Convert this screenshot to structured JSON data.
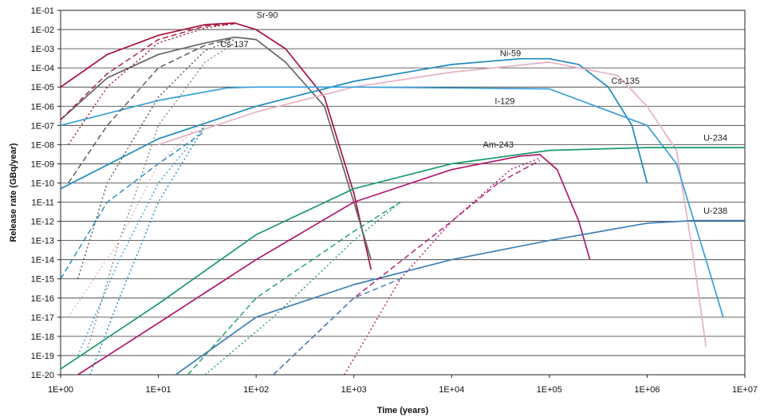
{
  "chart_data": {
    "type": "line",
    "title": "",
    "xlabel": "Time (years)",
    "ylabel": "Release rate (GBq/year)",
    "x_scale": "log",
    "y_scale": "log",
    "xlim": [
      1,
      10000000
    ],
    "ylim": [
      1e-20,
      0.1
    ],
    "x_tick_labels": [
      "1E+00",
      "1E+01",
      "1E+02",
      "1E+03",
      "1E+04",
      "1E+05",
      "1E+06",
      "1E+07"
    ],
    "y_tick_labels": [
      "1E-01",
      "1E-02",
      "1E-03",
      "1E-04",
      "1E-05",
      "1E-06",
      "1E-07",
      "1E-08",
      "1E-09",
      "1E-10",
      "1E-11",
      "1E-12",
      "1E-13",
      "1E-14",
      "1E-15",
      "1E-16",
      "1E-17",
      "1E-18",
      "1E-19",
      "1E-20"
    ],
    "grid": "horizontal",
    "legend": "none (inline labels)",
    "series": [
      {
        "name": "Sr-90",
        "color": "#a8123a",
        "style": "solid",
        "x": [
          1,
          3,
          10,
          30,
          60,
          100,
          200,
          500,
          1000,
          1500
        ],
        "y": [
          1e-05,
          0.0005,
          0.005,
          0.018,
          0.022,
          0.01,
          0.001,
          3e-06,
          3e-11,
          3e-15
        ]
      },
      {
        "name": "Cs-137",
        "color": "#666666",
        "style": "solid",
        "x": [
          1,
          3,
          10,
          30,
          60,
          100,
          200,
          500,
          1000,
          1500
        ],
        "y": [
          2e-07,
          3e-05,
          0.0005,
          0.002,
          0.004,
          0.003,
          0.0002,
          1e-06,
          1e-11,
          1e-14
        ]
      },
      {
        "name": "Ni-59",
        "color": "#1f8ac0",
        "style": "solid",
        "x": [
          1,
          10,
          100,
          1000,
          10000,
          50000,
          100000,
          200000,
          400000,
          700000,
          1000000
        ],
        "y": [
          5e-11,
          2e-08,
          1e-06,
          2e-05,
          0.00015,
          0.0003,
          0.0003,
          0.00015,
          1e-05,
          1e-07,
          1e-10
        ]
      },
      {
        "name": "Cs-135",
        "color": "#e8b0c0",
        "style": "solid",
        "x": [
          10,
          100,
          1000,
          10000,
          100000,
          500000,
          1000000,
          2000000,
          3000000,
          4000000
        ],
        "y": [
          1e-08,
          5e-07,
          1e-05,
          6e-05,
          0.0002,
          4e-05,
          1e-06,
          5e-09,
          1e-14,
          3e-19
        ]
      },
      {
        "name": "I-129",
        "color": "#3aa0d8",
        "style": "solid",
        "x": [
          1,
          10,
          50,
          100,
          1000,
          10000,
          100000,
          1000000,
          2000000,
          4000000,
          6000000
        ],
        "y": [
          1e-07,
          2e-06,
          9e-06,
          1e-05,
          1e-05,
          9e-06,
          8e-06,
          1e-07,
          1e-09,
          1e-14,
          1e-17
        ]
      },
      {
        "name": "Am-243",
        "color": "#b0186e",
        "style": "solid",
        "x": [
          1.5,
          10,
          100,
          1000,
          10000,
          50000,
          80000,
          120000,
          200000,
          260000
        ],
        "y": [
          1e-20,
          5e-18,
          1e-14,
          1e-11,
          5e-10,
          2.5e-09,
          3e-09,
          5e-10,
          1e-12,
          1e-14
        ]
      },
      {
        "name": "U-234",
        "color": "#1b9a6c",
        "style": "solid",
        "x": [
          1,
          10,
          100,
          1000,
          10000,
          100000,
          1000000,
          10000000
        ],
        "y": [
          2e-20,
          5e-17,
          2e-13,
          5e-11,
          1e-09,
          5e-09,
          7e-09,
          7e-09
        ]
      },
      {
        "name": "U-238",
        "color": "#3c7fb8",
        "style": "solid",
        "x": [
          15,
          100,
          1000,
          10000,
          100000,
          1000000,
          3000000,
          10000000
        ],
        "y": [
          1e-20,
          1e-17,
          5e-16,
          1e-14,
          1e-13,
          8e-13,
          1.1e-12,
          1.1e-12
        ]
      },
      {
        "name": "",
        "color": "#a8123a",
        "style": "dash",
        "x": [
          1,
          3,
          10,
          30,
          60
        ],
        "y": [
          2e-07,
          5e-05,
          0.003,
          0.015,
          0.02
        ]
      },
      {
        "name": "",
        "color": "#a8123a",
        "style": "dot",
        "x": [
          1.2,
          3,
          10,
          30,
          60
        ],
        "y": [
          1e-08,
          1e-05,
          0.002,
          0.012,
          0.02
        ]
      },
      {
        "name": "",
        "color": "#555555",
        "style": "dash",
        "x": [
          1.2,
          3,
          10,
          30,
          60
        ],
        "y": [
          1e-10,
          1e-07,
          0.0001,
          0.0015,
          0.0035
        ]
      },
      {
        "name": "",
        "color": "#555555",
        "style": "dot",
        "x": [
          1.5,
          3,
          10,
          30,
          60
        ],
        "y": [
          1e-15,
          1e-10,
          3e-06,
          0.0008,
          0.003
        ]
      },
      {
        "name": "",
        "color": "#888888",
        "style": "dot",
        "x": [
          1.8,
          4,
          10,
          30,
          60
        ],
        "y": [
          1e-19,
          1e-13,
          1e-07,
          0.0002,
          0.002
        ]
      },
      {
        "name": "",
        "color": "#1f8ac0",
        "style": "dash",
        "x": [
          1,
          3,
          10,
          30
        ],
        "y": [
          1e-15,
          1e-11,
          1e-09,
          5e-08
        ]
      },
      {
        "name": "",
        "color": "#3aa0d8",
        "style": "dot",
        "x": [
          1.5,
          4,
          10,
          30
        ],
        "y": [
          1e-19,
          1e-14,
          1e-10,
          1e-07
        ]
      },
      {
        "name": "",
        "color": "#e8b0c0",
        "style": "dot",
        "x": [
          1.2,
          4,
          10,
          30
        ],
        "y": [
          1e-17,
          1e-13,
          1e-09,
          2e-07
        ]
      },
      {
        "name": "",
        "color": "#1f8ac0",
        "style": "dot",
        "x": [
          2,
          4,
          10,
          30
        ],
        "y": [
          1e-20,
          1e-16,
          1e-11,
          1e-07
        ]
      },
      {
        "name": "",
        "color": "#1b9a6c",
        "style": "dash",
        "x": [
          20,
          100,
          1000,
          3000
        ],
        "y": [
          1e-20,
          1e-16,
          3e-13,
          1e-11
        ]
      },
      {
        "name": "",
        "color": "#1b9a6c",
        "style": "dot",
        "x": [
          30,
          150,
          1000,
          3000
        ],
        "y": [
          1e-20,
          1e-17,
          1e-13,
          1e-11
        ]
      },
      {
        "name": "",
        "color": "#b0186e",
        "style": "dash",
        "x": [
          150,
          1000,
          10000,
          30000,
          80000
        ],
        "y": [
          1e-20,
          1e-16,
          1e-12,
          1e-10,
          1.5e-09
        ]
      },
      {
        "name": "",
        "color": "#b0186e",
        "style": "dot",
        "x": [
          800,
          3000,
          10000,
          40000,
          80000
        ],
        "y": [
          1e-20,
          1e-15,
          1e-12,
          5e-10,
          2e-09
        ]
      },
      {
        "name": "",
        "color": "#3c7fb8",
        "style": "dash",
        "x": [
          150,
          1000,
          3000
        ],
        "y": [
          1e-20,
          1e-16,
          1e-15
        ]
      }
    ],
    "annotations": [
      {
        "text": "Sr-90",
        "x": 130,
        "y": 0.04
      },
      {
        "text": "Cs-137",
        "x": 60,
        "y": 0.0012
      },
      {
        "text": "Ni-59",
        "x": 40000,
        "y": 0.0004
      },
      {
        "text": "Cs-135",
        "x": 600000,
        "y": 1.5e-05
      },
      {
        "text": "I-129",
        "x": 35000,
        "y": 1.3e-06
      },
      {
        "text": "Am-243",
        "x": 30000,
        "y": 7e-09
      },
      {
        "text": "U-234",
        "x": 5000000,
        "y": 1.6e-08
      },
      {
        "text": "U-238",
        "x": 5000000,
        "y": 2.5e-12
      }
    ]
  }
}
